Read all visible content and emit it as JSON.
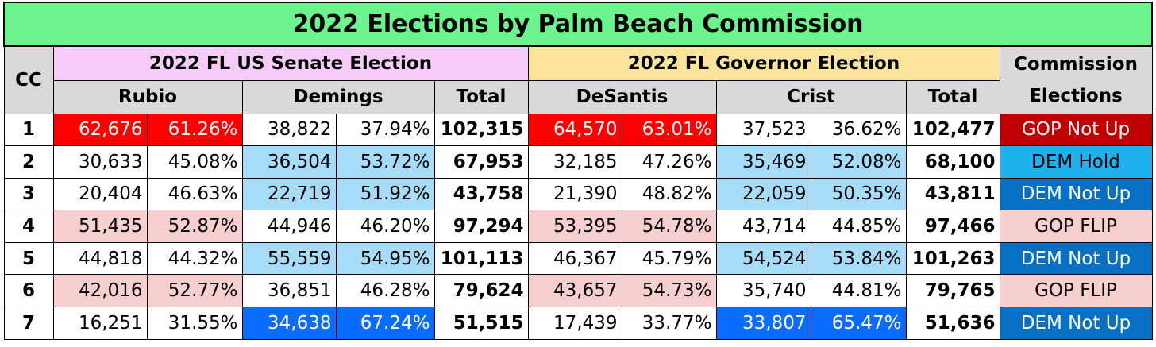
{
  "title": "2022 Elections by Palm Beach Commission",
  "headers": {
    "cc": "CC",
    "senate": "2022 FL US Senate Election",
    "governor": "2022 FL Governor Election",
    "commission": "Commission Elections",
    "rubio": "Rubio",
    "demings": "Demings",
    "total": "Total",
    "desantis": "DeSantis",
    "crist": "Crist"
  },
  "colors": {
    "title_bg": "#6cf58f",
    "senate_bg": "#f6ccf9",
    "governor_bg": "#fbe59d",
    "gop_strong": "#ff0000",
    "gop_lean": "#f8cfcf",
    "dem_lean": "#a6dcf8",
    "dem_strong": "#0a6cff"
  },
  "rows": [
    {
      "cc": "1",
      "rubio_votes": "62,676",
      "rubio_pct": "61.26%",
      "demings_votes": "38,822",
      "demings_pct": "37.94%",
      "senate_total": "102,315",
      "desantis_votes": "64,570",
      "desantis_pct": "63.01%",
      "crist_votes": "37,523",
      "crist_pct": "36.62%",
      "gov_total": "102,477",
      "commission": "GOP Not Up"
    },
    {
      "cc": "2",
      "rubio_votes": "30,633",
      "rubio_pct": "45.08%",
      "demings_votes": "36,504",
      "demings_pct": "53.72%",
      "senate_total": "67,953",
      "desantis_votes": "32,185",
      "desantis_pct": "47.26%",
      "crist_votes": "35,469",
      "crist_pct": "52.08%",
      "gov_total": "68,100",
      "commission": "DEM Hold"
    },
    {
      "cc": "3",
      "rubio_votes": "20,404",
      "rubio_pct": "46.63%",
      "demings_votes": "22,719",
      "demings_pct": "51.92%",
      "senate_total": "43,758",
      "desantis_votes": "21,390",
      "desantis_pct": "48.82%",
      "crist_votes": "22,059",
      "crist_pct": "50.35%",
      "gov_total": "43,811",
      "commission": "DEM Not Up"
    },
    {
      "cc": "4",
      "rubio_votes": "51,435",
      "rubio_pct": "52.87%",
      "demings_votes": "44,946",
      "demings_pct": "46.20%",
      "senate_total": "97,294",
      "desantis_votes": "53,395",
      "desantis_pct": "54.78%",
      "crist_votes": "43,714",
      "crist_pct": "44.85%",
      "gov_total": "97,466",
      "commission": "GOP FLIP"
    },
    {
      "cc": "5",
      "rubio_votes": "44,818",
      "rubio_pct": "44.32%",
      "demings_votes": "55,559",
      "demings_pct": "54.95%",
      "senate_total": "101,113",
      "desantis_votes": "46,367",
      "desantis_pct": "45.79%",
      "crist_votes": "54,524",
      "crist_pct": "53.84%",
      "gov_total": "101,263",
      "commission": "DEM Not Up"
    },
    {
      "cc": "6",
      "rubio_votes": "42,016",
      "rubio_pct": "52.77%",
      "demings_votes": "36,851",
      "demings_pct": "46.28%",
      "senate_total": "79,624",
      "desantis_votes": "43,657",
      "desantis_pct": "54.73%",
      "crist_votes": "35,740",
      "crist_pct": "44.81%",
      "gov_total": "79,765",
      "commission": "GOP FLIP"
    },
    {
      "cc": "7",
      "rubio_votes": "16,251",
      "rubio_pct": "31.55%",
      "demings_votes": "34,638",
      "demings_pct": "67.24%",
      "senate_total": "51,515",
      "desantis_votes": "17,439",
      "desantis_pct": "33.77%",
      "crist_votes": "33,807",
      "crist_pct": "65.47%",
      "gov_total": "51,636",
      "commission": "DEM Not Up"
    }
  ]
}
